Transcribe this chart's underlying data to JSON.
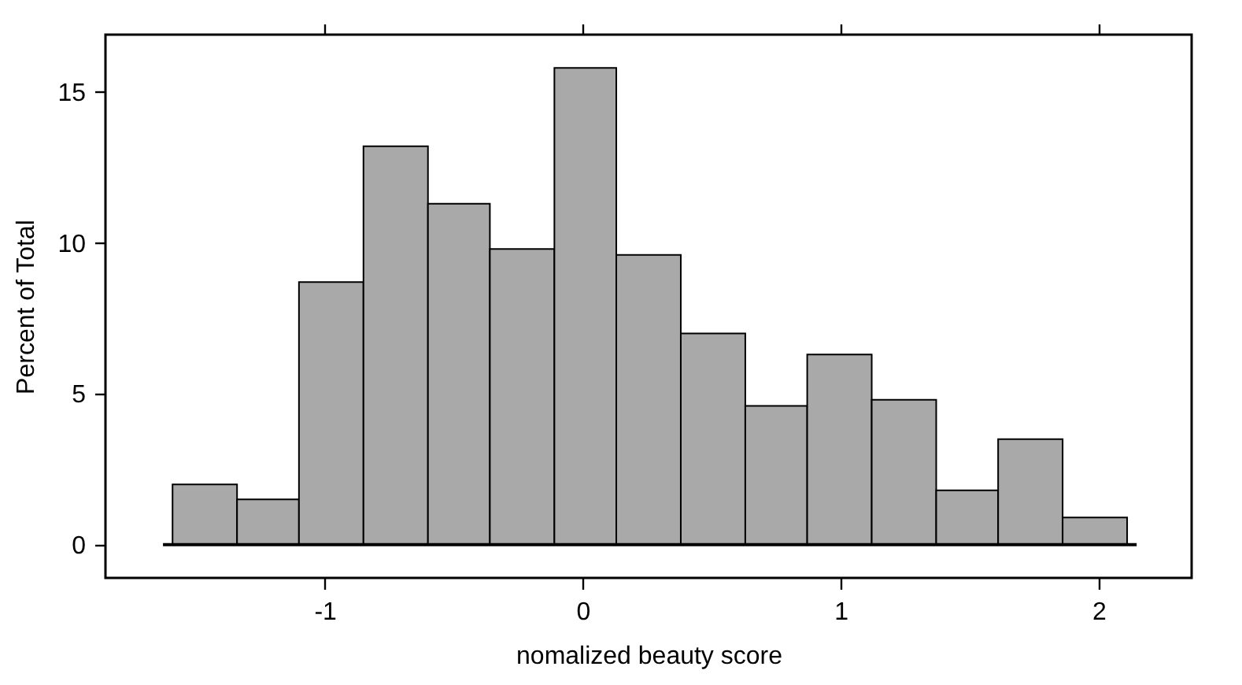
{
  "chart_data": {
    "type": "histogram",
    "xlabel": "nomalized beauty score",
    "ylabel": "Percent of Total",
    "bins": [
      -1.59,
      -1.34,
      -1.1,
      -0.85,
      -0.6,
      -0.36,
      -0.11,
      0.13,
      0.38,
      0.63,
      0.87,
      1.12,
      1.37,
      1.61,
      1.86,
      2.11
    ],
    "values": [
      2.0,
      1.5,
      8.7,
      13.2,
      11.3,
      9.8,
      15.8,
      9.6,
      7.0,
      4.6,
      6.3,
      4.8,
      1.8,
      3.5,
      0.9
    ],
    "color": "#a9a9a9",
    "xlim": [
      -1.85,
      2.36
    ],
    "ylim": [
      -1.1,
      16.9
    ],
    "xticks": [
      -1,
      0,
      1,
      2
    ],
    "yticks": [
      0,
      5,
      10,
      15
    ],
    "ref_lines": [
      {
        "axis": "y",
        "value": 0,
        "color": "#000000"
      }
    ],
    "grid": false
  }
}
